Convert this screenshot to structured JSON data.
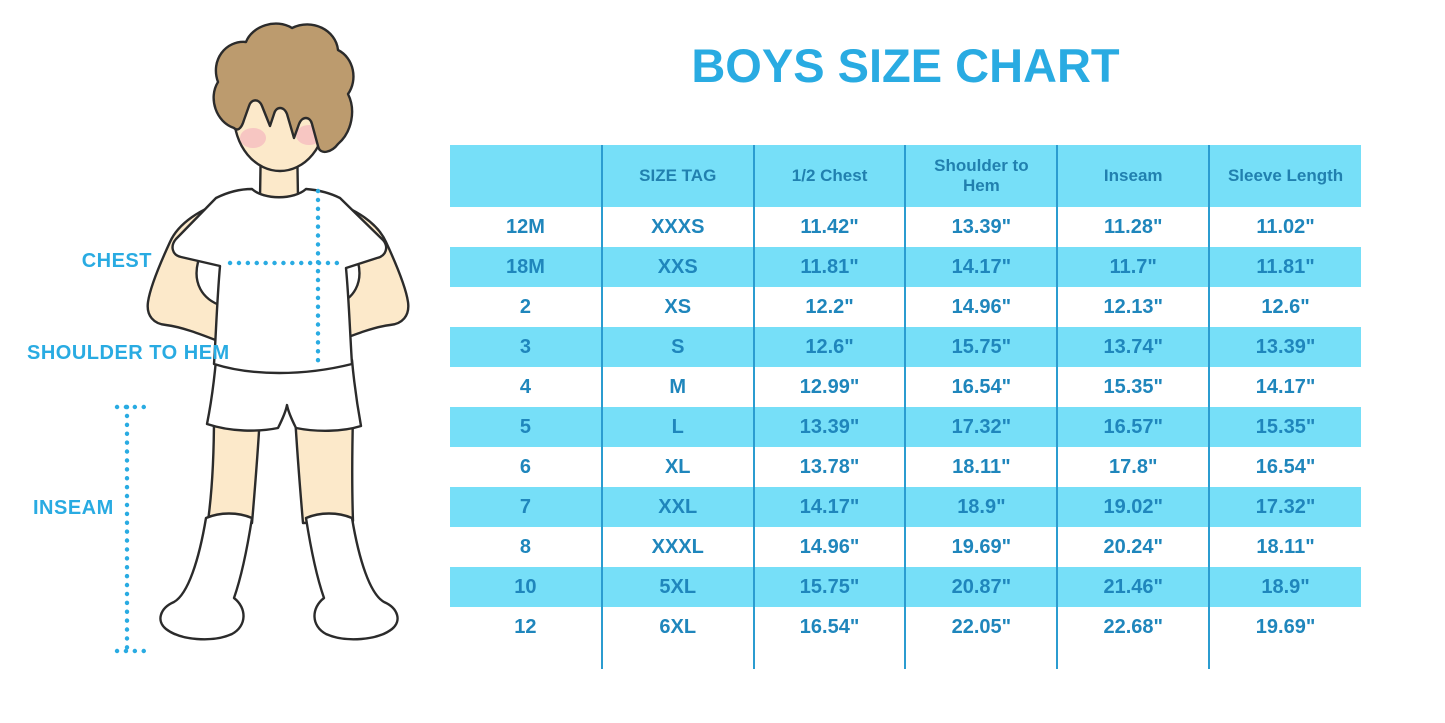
{
  "page": {
    "title": "BOYS SIZE CHART"
  },
  "diagram": {
    "figure": "boy-with-measurement-lines",
    "chest_label": "CHEST",
    "shoulder_to_hem_label": "SHOULDER TO HEM",
    "inseam_label": "INSEAM"
  },
  "chart_data": {
    "type": "table",
    "title": "BOYS SIZE CHART",
    "columns": [
      "",
      "SIZE TAG",
      "1/2 Chest",
      "Shoulder to Hem",
      "Inseam",
      "Sleeve Length"
    ],
    "rows": [
      [
        "12M",
        "XXXS",
        "11.42\"",
        "13.39\"",
        "11.28\"",
        "11.02\""
      ],
      [
        "18M",
        "XXS",
        "11.81\"",
        "14.17\"",
        "11.7\"",
        "11.81\""
      ],
      [
        "2",
        "XS",
        "12.2\"",
        "14.96\"",
        "12.13\"",
        "12.6\""
      ],
      [
        "3",
        "S",
        "12.6\"",
        "15.75\"",
        "13.74\"",
        "13.39\""
      ],
      [
        "4",
        "M",
        "12.99\"",
        "16.54\"",
        "15.35\"",
        "14.17\""
      ],
      [
        "5",
        "L",
        "13.39\"",
        "17.32\"",
        "16.57\"",
        "15.35\""
      ],
      [
        "6",
        "XL",
        "13.78\"",
        "18.11\"",
        "17.8\"",
        "16.54\""
      ],
      [
        "7",
        "XXL",
        "14.17\"",
        "18.9\"",
        "19.02\"",
        "17.32\""
      ],
      [
        "8",
        "XXXL",
        "14.96\"",
        "19.69\"",
        "20.24\"",
        "18.11\""
      ],
      [
        "10",
        "5XL",
        "15.75\"",
        "20.87\"",
        "21.46\"",
        "18.9\""
      ],
      [
        "12",
        "6XL",
        "16.54\"",
        "22.05\"",
        "22.68\"",
        "19.69\""
      ]
    ],
    "row_striping": "white and light blue alternating",
    "units": "inches"
  },
  "colors": {
    "title_blue": "#29ABE2",
    "table_fill": "#76DFF8",
    "table_text": "#1F86BC",
    "header_text": "#2180AF",
    "divider": "#2B9CD0",
    "skin": "#FCE9CA",
    "hair": "#BC9B6E",
    "cheek": "#F2A9BC",
    "outline": "#2B2B2B"
  }
}
